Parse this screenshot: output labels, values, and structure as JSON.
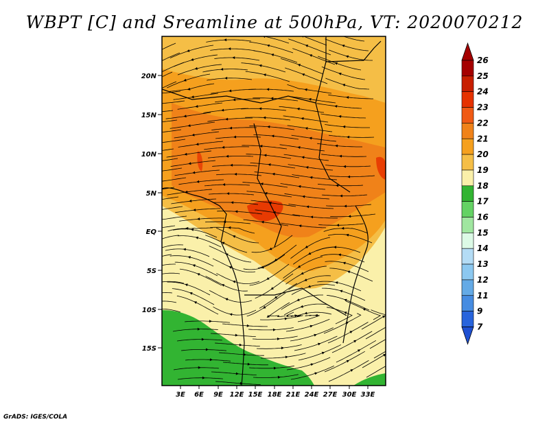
{
  "title": "WBPT [C] and Sreamline at 500hPa, VT: 2020070212",
  "footer": "GrADS: IGES/COLA",
  "map": {
    "lon_range": [
      0,
      36
    ],
    "lat_range": [
      -20,
      25
    ],
    "lat_ticks": [
      "20N",
      "15N",
      "10N",
      "5N",
      "EQ",
      "5S",
      "10S",
      "15S"
    ],
    "lon_ticks": [
      "3E",
      "6E",
      "9E",
      "12E",
      "15E",
      "18E",
      "21E",
      "24E",
      "27E",
      "30E",
      "33E"
    ]
  },
  "colorbar": {
    "levels": [
      "26",
      "25",
      "24",
      "23",
      "22",
      "21",
      "20",
      "19",
      "18",
      "17",
      "16",
      "15",
      "14",
      "13",
      "12",
      "11",
      "9",
      "7"
    ],
    "colors": [
      "#a50000",
      "#c81e00",
      "#e63200",
      "#f05a14",
      "#f08219",
      "#f5a01e",
      "#f5be46",
      "#faf0aa",
      "#32b432",
      "#64d264",
      "#a0e6a0",
      "#dcfae6",
      "#b4dcf5",
      "#8cc8f0",
      "#64aae6",
      "#468ce1",
      "#2864dc",
      "#1e50d2"
    ],
    "top_arrow_color": "#a50000",
    "bottom_arrow_color": "#1e50d2"
  },
  "colors": {
    "band_19_20": "#faf0aa",
    "band_20_21": "#f5be46",
    "band_21_22": "#f5a01e",
    "band_22_23": "#f08219",
    "band_23_24": "#e63200",
    "band_17_18": "#32b432"
  }
}
